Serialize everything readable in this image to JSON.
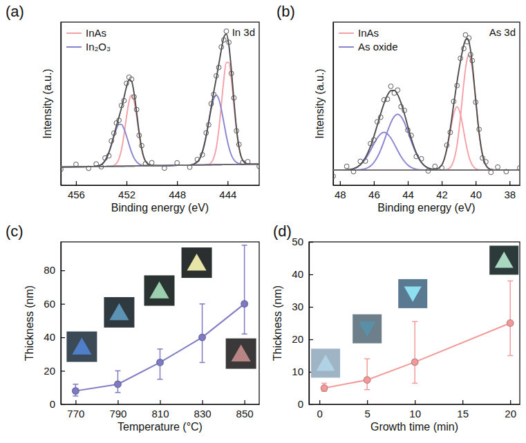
{
  "chart_data": [
    {
      "type": "line",
      "panel_label": "(a)",
      "x_label": "Binding energy (eV)",
      "y_label": "Intensity (a.u.)",
      "annotations": [
        "In 3d"
      ],
      "x": [
        457.2,
        456,
        455,
        454.4,
        454.0,
        453.7,
        453.4,
        453.2,
        453.0,
        452.8,
        452.6,
        452.4,
        452.2,
        452.0,
        451.8,
        451.6,
        451.4,
        451.2,
        451.0,
        450.8,
        450.5,
        450.0,
        449,
        448,
        447,
        446.4,
        446.0,
        445.7,
        445.5,
        445.3,
        445.1,
        444.9,
        444.7,
        444.5,
        444.3,
        444.1,
        443.9,
        443.7,
        443.5,
        443.3,
        443.1,
        442.8,
        442.4,
        441.5
      ],
      "xlim": [
        457.2,
        441.5
      ],
      "xticks": [
        456,
        452,
        448,
        444
      ],
      "ylim": [
        0,
        108
      ],
      "tick_labels": "x",
      "legend": "upper-left",
      "series": [
        {
          "name": "InAs",
          "color": "#f4a0a6",
          "values": [
            12.0,
            12.2,
            12.3,
            12.4,
            12.4,
            12.4,
            12.5,
            12.5,
            12.5,
            12.6,
            12.6,
            12.6,
            12.6,
            12.7,
            12.7,
            12.7,
            12.7,
            12.8,
            12.8,
            12.8,
            12.9,
            12.9,
            13.0,
            13.2,
            13.3,
            13.4,
            13.4,
            13.6,
            13.9,
            15.0,
            18.1,
            24.6,
            36.4,
            52.8,
            70.0,
            81.2,
            81.2,
            70.0,
            53.0,
            36.6,
            24.8,
            16.4,
            14.1,
            14.0
          ]
        },
        {
          "color": "#f4a0a6",
          "values": [
            12.0,
            12.2,
            12.3,
            12.4,
            12.4,
            12.4,
            12.5,
            12.6,
            13.1,
            14.4,
            17.5,
            23.6,
            33.4,
            45.4,
            55.6,
            59.7,
            55.6,
            45.5,
            33.6,
            23.8,
            15.9,
            13.0,
            13.0,
            13.2,
            13.3,
            13.4,
            13.4,
            13.5,
            13.5,
            13.5,
            13.6,
            13.6,
            13.6,
            13.6,
            13.7,
            13.7,
            13.7,
            13.7,
            13.8,
            13.8,
            13.8,
            13.8,
            13.9,
            14.0
          ]
        },
        {
          "name": "In₂O₃",
          "color": "#8784d2",
          "values": [
            12.0,
            12.2,
            12.3,
            12.4,
            12.4,
            12.4,
            12.5,
            12.5,
            12.5,
            12.6,
            12.6,
            12.6,
            12.6,
            12.7,
            12.7,
            12.7,
            12.7,
            12.8,
            12.8,
            12.8,
            12.9,
            12.9,
            13.0,
            13.2,
            13.3,
            15.4,
            22.0,
            32.4,
            41.4,
            50.3,
            57.1,
            59.6,
            57.1,
            50.4,
            41.6,
            32.6,
            25.2,
            19.9,
            16.8,
            15.1,
            14.3,
            13.9,
            13.9,
            14.0
          ]
        },
        {
          "color": "#8784d2",
          "values": [
            12.0,
            12.2,
            12.3,
            12.6,
            13.6,
            16.2,
            21.6,
            26.7,
            32.3,
            37.3,
            40.2,
            40.2,
            37.3,
            32.5,
            26.9,
            21.8,
            17.9,
            15.5,
            14.0,
            13.3,
            13.0,
            12.9,
            13.0,
            13.2,
            13.3,
            13.4,
            13.4,
            13.5,
            13.5,
            13.5,
            13.6,
            13.6,
            13.6,
            13.6,
            13.7,
            13.7,
            13.7,
            13.7,
            13.8,
            13.8,
            13.8,
            13.8,
            13.9,
            14.0
          ]
        },
        {
          "color": "#4d4d4d",
          "values": [
            12.0,
            12.2,
            12.3,
            12.6,
            13.6,
            16.2,
            21.6,
            26.8,
            32.9,
            39.1,
            45.1,
            51.2,
            58.1,
            65.2,
            69.8,
            68.8,
            60.8,
            48.2,
            34.8,
            24.3,
            16.0,
            13.0,
            13.0,
            13.2,
            13.3,
            15.4,
            22.0,
            32.5,
            41.8,
            51.8,
            61.6,
            70.6,
            79.9,
            89.6,
            97.9,
            100.1,
            92.7,
            76.2,
            56.0,
            37.9,
            25.3,
            16.5,
            14.1,
            14.0
          ]
        },
        {
          "color": "#6a6a6a",
          "values": [
            12.0,
            12.2,
            12.3,
            12.4,
            12.4,
            12.4,
            12.5,
            12.5,
            12.5,
            12.6,
            12.6,
            12.6,
            12.6,
            12.7,
            12.7,
            12.7,
            12.7,
            12.8,
            12.8,
            12.8,
            12.9,
            12.9,
            13.0,
            13.2,
            13.3,
            13.4,
            13.4,
            13.5,
            13.5,
            13.5,
            13.6,
            13.6,
            13.6,
            13.6,
            13.7,
            13.7,
            13.7,
            13.7,
            13.8,
            13.8,
            13.8,
            13.8,
            13.9,
            14.0
          ]
        },
        {
          "type": "scatter",
          "marker": "open-circle",
          "color": "#555555",
          "values": [
            10.5,
            13.8,
            11.2,
            14.1,
            12.2,
            18.0,
            19.5,
            29.3,
            34.5,
            41.2,
            43.0,
            52.8,
            56.0,
            67.5,
            71.5,
            70.2,
            58.5,
            50.1,
            33.0,
            26.2,
            14.2,
            14.9,
            11.3,
            14.8,
            11.9,
            17.0,
            20.2,
            34.7,
            40.0,
            54.0,
            60.1,
            72.4,
            78.0,
            91.5,
            96.2,
            102.0,
            94.6,
            74.0,
            57.8,
            36.0,
            27.0,
            15.0,
            15.6,
            12.5
          ]
        }
      ]
    },
    {
      "type": "line",
      "panel_label": "(b)",
      "x_label": "Binding energy (eV)",
      "y_label": "Intensity (a.u.)",
      "annotations": [
        "As 3d"
      ],
      "x": [
        48.4,
        47.6,
        47.2,
        46.8,
        46.5,
        46.2,
        46.0,
        45.8,
        45.6,
        45.4,
        45.2,
        45.0,
        44.8,
        44.6,
        44.4,
        44.2,
        44.0,
        43.8,
        43.5,
        43.2,
        42.8,
        42.4,
        42.0,
        41.7,
        41.5,
        41.3,
        41.1,
        40.9,
        40.7,
        40.6,
        40.5,
        40.4,
        40.3,
        40.2,
        40.0,
        39.8,
        39.6,
        39.4,
        39.1,
        38.7,
        38.2,
        37.4
      ],
      "xlim": [
        48.4,
        37.4
      ],
      "xticks": [
        48,
        46,
        44,
        42,
        40,
        38
      ],
      "ylim": [
        0,
        108
      ],
      "tick_labels": "x",
      "legend": "upper-left",
      "series": [
        {
          "name": "InAs",
          "color": "#f4a0a6",
          "values": [
            10,
            10,
            10,
            10,
            10,
            10,
            10,
            10,
            10,
            10,
            10,
            10,
            10,
            10,
            10,
            10,
            10,
            10,
            10,
            10,
            10,
            10,
            10,
            10.4,
            11.7,
            16.1,
            26.4,
            44.8,
            67.4,
            77.0,
            83.6,
            86.0,
            83.6,
            77.0,
            56.1,
            34.7,
            20.3,
            13.3,
            10.4,
            10,
            10,
            10
          ]
        },
        {
          "color": "#f4a0a6",
          "values": [
            10,
            10,
            10,
            10,
            10,
            10,
            10,
            10,
            10,
            10,
            10,
            10,
            10,
            10,
            10,
            10,
            10,
            10,
            10,
            10,
            10,
            10.2,
            13.4,
            23.7,
            35.5,
            47.0,
            52.0,
            47.0,
            35.5,
            29.2,
            23.7,
            19.1,
            15.7,
            13.4,
            11.0,
            10.2,
            10,
            10,
            10,
            10,
            10,
            10
          ]
        },
        {
          "name": "As oxide",
          "color": "#8784d2",
          "values": [
            10,
            10,
            10,
            10.3,
            10.9,
            12.7,
            15.0,
            18.5,
            23.3,
            29.2,
            35.6,
            41.4,
            45.5,
            47.0,
            45.5,
            41.4,
            35.6,
            29.2,
            20.8,
            15.0,
            11.4,
            10.3,
            10,
            10,
            10,
            10,
            10,
            10,
            10,
            10,
            10,
            10,
            10,
            10,
            10,
            10,
            10,
            10,
            10,
            10,
            10,
            10
          ]
        },
        {
          "color": "#8784d2",
          "values": [
            10,
            10.2,
            10.9,
            13.4,
            17.3,
            23.0,
            27.3,
            31.2,
            34.0,
            35.0,
            34.0,
            31.2,
            27.3,
            23.0,
            19.0,
            15.8,
            13.4,
            11.8,
            10.6,
            10.2,
            10,
            10,
            10,
            10,
            10,
            10,
            10,
            10,
            10,
            10,
            10,
            10,
            10,
            10,
            10,
            10,
            10,
            10,
            10,
            10,
            10,
            10
          ]
        },
        {
          "color": "#4d4d4d",
          "values": [
            10,
            10.2,
            10.9,
            13.7,
            18.2,
            25.7,
            32.3,
            39.7,
            47.3,
            54.2,
            59.6,
            62.6,
            62.8,
            60.0,
            54.5,
            47.2,
            39.0,
            31.0,
            21.4,
            15.2,
            11.4,
            10.5,
            13.4,
            24.1,
            37.2,
            53.1,
            68.4,
            81.8,
            92.9,
            96.2,
            97.3,
            95.1,
            89.3,
            80.4,
            57.1,
            34.9,
            20.3,
            13.3,
            10.4,
            10,
            10,
            10
          ]
        },
        {
          "color": "#6a6a6a",
          "values": [
            10,
            10,
            10,
            10,
            10,
            10,
            10,
            10,
            10,
            10,
            10,
            10,
            10,
            10,
            10,
            10,
            10,
            10,
            10,
            10,
            10,
            10,
            10,
            10,
            10,
            10,
            10,
            10,
            10,
            10,
            10,
            10,
            10,
            10,
            10,
            10,
            10,
            10,
            10,
            10,
            10,
            10
          ]
        },
        {
          "type": "scatter",
          "marker": "open-circle",
          "color": "#555555",
          "values": [
            6.0,
            12.5,
            9.0,
            15.8,
            16.0,
            27.5,
            30.0,
            42.0,
            45.0,
            56.5,
            57.0,
            65.5,
            61.0,
            63.0,
            52.0,
            49.5,
            36.5,
            33.0,
            19.0,
            17.5,
            9.5,
            12.5,
            11.5,
            26.5,
            35.0,
            55.5,
            66.0,
            84.0,
            90.5,
            99.5,
            95.0,
            97.5,
            86.5,
            82.5,
            55.0,
            37.0,
            18.0,
            15.5,
            8.5,
            12.0,
            9.0,
            11.5
          ]
        }
      ]
    },
    {
      "type": "line",
      "panel_label": "(c)",
      "x_label": "Temperature (°C)",
      "y_label": "Thickness (nm)",
      "x": [
        770,
        790,
        810,
        830,
        850
      ],
      "xlim": [
        763,
        857
      ],
      "xticks": [
        770,
        790,
        810,
        830,
        850
      ],
      "ylim": [
        0,
        97
      ],
      "yticks": [
        0,
        20,
        40,
        60,
        80
      ],
      "series": [
        {
          "color": "#7e7bc4",
          "marker": "circle",
          "values": [
            8,
            12,
            25,
            40,
            60
          ],
          "error_minus": [
            3,
            5,
            10,
            15,
            18
          ],
          "error_plus": [
            4,
            8,
            8,
            20,
            35
          ]
        }
      ]
    },
    {
      "type": "line",
      "panel_label": "(d)",
      "x_label": "Growth time (min)",
      "y_label": "Thickness (nm)",
      "x": [
        0.5,
        5,
        10,
        20
      ],
      "xlim": [
        -1.1,
        21
      ],
      "xticks": [
        0,
        5,
        10,
        15,
        20
      ],
      "ylim": [
        0,
        50
      ],
      "yticks": [
        0,
        10,
        20,
        30,
        40,
        50
      ],
      "series": [
        {
          "color": "#f29a9a",
          "marker": "circle",
          "values": [
            5,
            7.5,
            13,
            25
          ],
          "error_minus": [
            1,
            3,
            6.5,
            10
          ],
          "error_plus": [
            1.5,
            6.5,
            12.5,
            13
          ]
        }
      ]
    }
  ]
}
